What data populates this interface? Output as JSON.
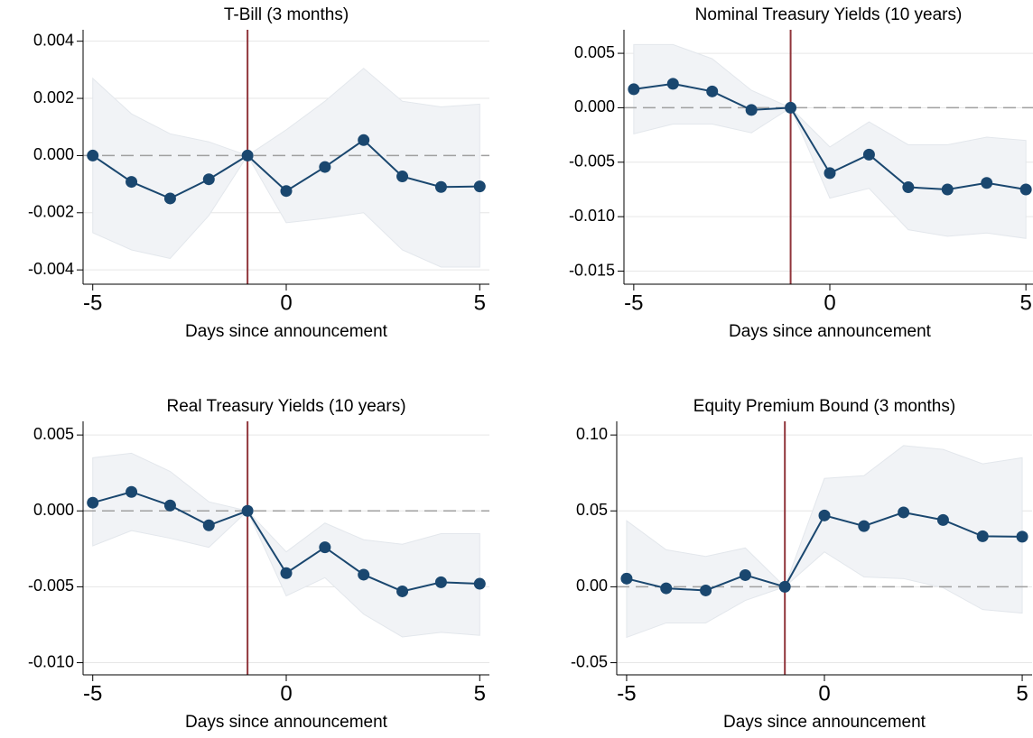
{
  "chart_data": [
    {
      "type": "line",
      "title": "T-Bill (3 months)",
      "x_label": "Days since announcement",
      "x": [
        -5,
        -4,
        -3,
        -2,
        -1,
        0,
        1,
        2,
        3,
        4,
        5
      ],
      "values": [
        0.0,
        -0.00092,
        -0.0015,
        -0.00083,
        0.0,
        -0.00124,
        -0.0004,
        0.00054,
        -0.00073,
        -0.0011,
        -0.00108
      ],
      "upper": [
        0.0027,
        0.00146,
        0.00076,
        0.00048,
        0.0,
        0.0009,
        0.0019,
        0.00305,
        0.0019,
        0.0017,
        0.0018
      ],
      "lower": [
        -0.0027,
        -0.0033,
        -0.0036,
        -0.0021,
        0.0,
        -0.00235,
        -0.0022,
        -0.002,
        -0.0033,
        -0.0039,
        -0.0039
      ],
      "xlim": [
        -5.25,
        5.25
      ],
      "xticks": [
        -5,
        0,
        5
      ],
      "ylim": [
        -0.0045,
        0.0044
      ],
      "yticks": [
        -0.004,
        -0.002,
        {
          "value": 0,
          "label": "0.000"
        },
        0.002,
        0.004
      ],
      "vline": -1,
      "hline": 0,
      "grid": true,
      "color": "#1a476f",
      "band_color": "#f1f3f6",
      "vline_color": "#90353b"
    },
    {
      "type": "line",
      "title": "Nominal Treasury Yields (10 years)",
      "x_label": "Days since announcement",
      "x": [
        -5,
        -4,
        -3,
        -2,
        -1,
        0,
        1,
        2,
        3,
        4,
        5
      ],
      "values": [
        0.0017,
        0.0022,
        0.0015,
        -0.0002,
        0.0,
        -0.006,
        -0.0043,
        -0.0073,
        -0.0075,
        -0.0069,
        -0.0075
      ],
      "upper": [
        0.0058,
        0.0058,
        0.0045,
        0.0016,
        0.0,
        -0.0036,
        -0.0013,
        -0.0034,
        -0.0034,
        -0.0027,
        -0.003
      ],
      "lower": [
        -0.0024,
        -0.0015,
        -0.0015,
        -0.0023,
        0.0,
        -0.0083,
        -0.0074,
        -0.0112,
        -0.0118,
        -0.0115,
        -0.012
      ],
      "xlim": [
        -5.25,
        5.25
      ],
      "xticks": [
        -5,
        0,
        5
      ],
      "ylim": [
        -0.0162,
        0.00716
      ],
      "yticks": [
        -0.015,
        {
          "value": -0.01,
          "label": "-0.010"
        },
        -0.005,
        {
          "value": 0,
          "label": "0.000"
        },
        0.005
      ],
      "vline": -1,
      "hline": 0,
      "grid": true,
      "color": "#1a476f",
      "band_color": "#f1f3f6",
      "vline_color": "#90353b"
    },
    {
      "type": "line",
      "title": "Real Treasury Yields (10 years)",
      "x_label": "Days since announcement",
      "x": [
        -5,
        -4,
        -3,
        -2,
        -1,
        0,
        1,
        2,
        3,
        4,
        5
      ],
      "values": [
        0.00054,
        0.00125,
        0.00036,
        -0.00095,
        0.0,
        -0.0041,
        -0.0024,
        -0.0042,
        -0.0053,
        -0.0047,
        -0.0048
      ],
      "upper": [
        0.0035,
        0.0038,
        0.0026,
        0.0006,
        0.0,
        -0.0027,
        -0.0008,
        -0.0019,
        -0.0022,
        -0.0015,
        -0.0015
      ],
      "lower": [
        -0.0023,
        -0.0013,
        -0.0018,
        -0.0024,
        0.0,
        -0.0056,
        -0.0044,
        -0.0068,
        -0.0083,
        -0.008,
        -0.0082
      ],
      "xlim": [
        -5.25,
        5.25
      ],
      "xticks": [
        -5,
        0,
        5
      ],
      "ylim": [
        -0.0108,
        0.0059
      ],
      "yticks": [
        {
          "value": -0.01,
          "label": "-0.010"
        },
        -0.005,
        {
          "value": 0,
          "label": "0.000"
        },
        0.005
      ],
      "vline": -1,
      "hline": 0,
      "grid": true,
      "color": "#1a476f",
      "band_color": "#f1f3f6",
      "vline_color": "#90353b"
    },
    {
      "type": "line",
      "title": "Equity Premium Bound (3 months)",
      "x_label": "Days since announcement",
      "x": [
        -5,
        -4,
        -3,
        -2,
        -1,
        0,
        1,
        2,
        3,
        4,
        5
      ],
      "values": [
        0.0054,
        -0.001,
        -0.0024,
        0.0077,
        0.0,
        0.047,
        0.04,
        0.049,
        0.044,
        0.0333,
        0.033
      ],
      "upper": [
        0.0435,
        0.0244,
        0.02,
        0.0256,
        0.0,
        0.0714,
        0.0732,
        0.093,
        0.0905,
        0.081,
        0.085
      ],
      "lower": [
        -0.0333,
        -0.0238,
        -0.0238,
        -0.009,
        0.0,
        0.023,
        0.0065,
        0.0054,
        -0.0006,
        -0.015,
        -0.0173
      ],
      "xlim": [
        -5.25,
        5.25
      ],
      "xticks": [
        -5,
        0,
        5
      ],
      "ylim": [
        -0.058,
        0.109
      ],
      "yticks": [
        -0.05,
        {
          "value": 0,
          "label": "0.00"
        },
        0.05,
        {
          "value": 0.1,
          "label": "0.10"
        }
      ],
      "vline": -1,
      "hline": 0,
      "grid": true,
      "color": "#1a476f",
      "band_color": "#f1f3f6",
      "vline_color": "#90353b"
    }
  ]
}
